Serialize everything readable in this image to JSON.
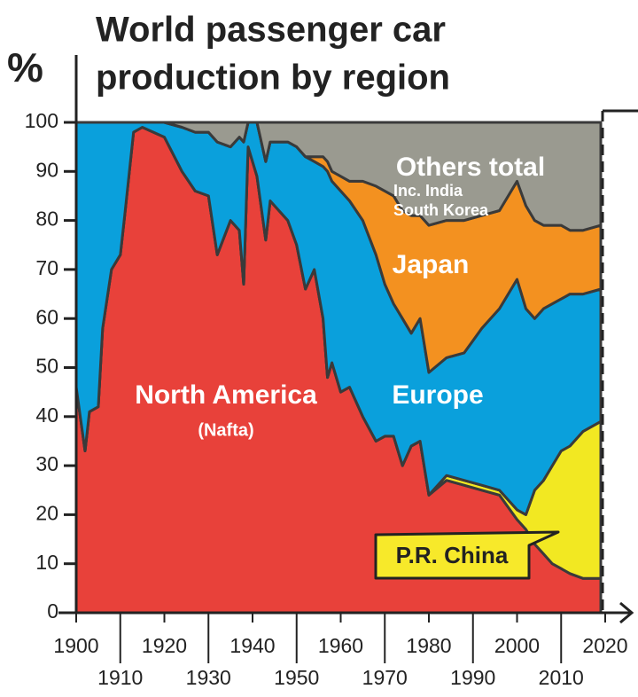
{
  "chart_data": {
    "type": "stacked-area",
    "title": [
      "World passenger car",
      "production by region"
    ],
    "ylabel": "%",
    "xlim": [
      1900,
      2020
    ],
    "ylim": [
      0,
      100
    ],
    "xticks": [
      1900,
      1910,
      1920,
      1930,
      1940,
      1950,
      1960,
      1970,
      1980,
      1990,
      2000,
      2010,
      2020
    ],
    "yticks": [
      0,
      10,
      20,
      30,
      40,
      50,
      60,
      70,
      80,
      90,
      100
    ],
    "x": [
      1900,
      1902,
      1903,
      1905,
      1906,
      1908,
      1910,
      1911,
      1913,
      1915,
      1920,
      1924,
      1927,
      1930,
      1932,
      1935,
      1937,
      1938,
      1939,
      1941,
      1943,
      1944,
      1948,
      1950,
      1952,
      1954,
      1956,
      1957,
      1958,
      1960,
      1962,
      1965,
      1968,
      1970,
      1972,
      1974,
      1976,
      1978,
      1980,
      1984,
      1988,
      1992,
      1996,
      2000,
      2002,
      2004,
      2006,
      2008,
      2010,
      2012,
      2015,
      2019
    ],
    "series": [
      {
        "name": "North America",
        "color": "#e8413a",
        "values": [
          46,
          33,
          41,
          42,
          58,
          70,
          73,
          81,
          98,
          99,
          97,
          90,
          86,
          85,
          73,
          80,
          78,
          67,
          95,
          89,
          76,
          84,
          80,
          75,
          66,
          70,
          60,
          48,
          51,
          45,
          46,
          40,
          35,
          36,
          36,
          30,
          34,
          35,
          24,
          27,
          26,
          25,
          24,
          19,
          17,
          14,
          12,
          10,
          9,
          8,
          7,
          7
        ]
      },
      {
        "name": "P.R. China",
        "color": "#f2e822",
        "values": [
          0,
          0,
          0,
          0,
          0,
          0,
          0,
          0,
          0,
          0,
          0,
          0,
          0,
          0,
          0,
          0,
          0,
          0,
          0,
          0,
          0,
          0,
          0,
          0,
          0,
          0,
          0,
          0,
          0,
          0,
          0,
          0,
          0,
          0,
          0,
          0,
          0,
          0,
          0,
          1,
          1,
          1,
          1,
          2,
          3,
          11,
          15,
          20,
          24,
          26,
          30,
          32
        ]
      },
      {
        "name": "Europe",
        "color": "#0aa0dc",
        "values": [
          54,
          67,
          59,
          58,
          42,
          30,
          27,
          19,
          2,
          1,
          3,
          9,
          12,
          13,
          23,
          15,
          19,
          29,
          5,
          11,
          16,
          12,
          16,
          20,
          27,
          22,
          31,
          42,
          37,
          41,
          38,
          40,
          38,
          31,
          27,
          30,
          23,
          25,
          25,
          24,
          26,
          32,
          37,
          47,
          42,
          35,
          35,
          33,
          31,
          31,
          28,
          27
        ]
      },
      {
        "name": "Japan",
        "color": "#f39120",
        "values": [
          0,
          0,
          0,
          0,
          0,
          0,
          0,
          0,
          0,
          0,
          0,
          0,
          0,
          0,
          0,
          0,
          0,
          0,
          0,
          0,
          0,
          0,
          0,
          0,
          0,
          1,
          2,
          2,
          2,
          3,
          4,
          8,
          14,
          19,
          22,
          22,
          24,
          21,
          30,
          28,
          27,
          23,
          20,
          20,
          21,
          20,
          17,
          16,
          15,
          13,
          13,
          13
        ]
      },
      {
        "name": "Others total",
        "color": "#9a9a90",
        "values": [
          0,
          0,
          0,
          0,
          0,
          0,
          0,
          0,
          0,
          0,
          0,
          1,
          2,
          2,
          4,
          5,
          3,
          4,
          0,
          0,
          8,
          4,
          4,
          5,
          7,
          7,
          7,
          8,
          10,
          11,
          12,
          12,
          13,
          14,
          15,
          18,
          19,
          19,
          21,
          20,
          20,
          19,
          18,
          12,
          17,
          20,
          21,
          21,
          21,
          22,
          22,
          21
        ]
      }
    ],
    "annotations": [
      "(Nafta)",
      "Inc. India",
      "South Korea"
    ]
  }
}
